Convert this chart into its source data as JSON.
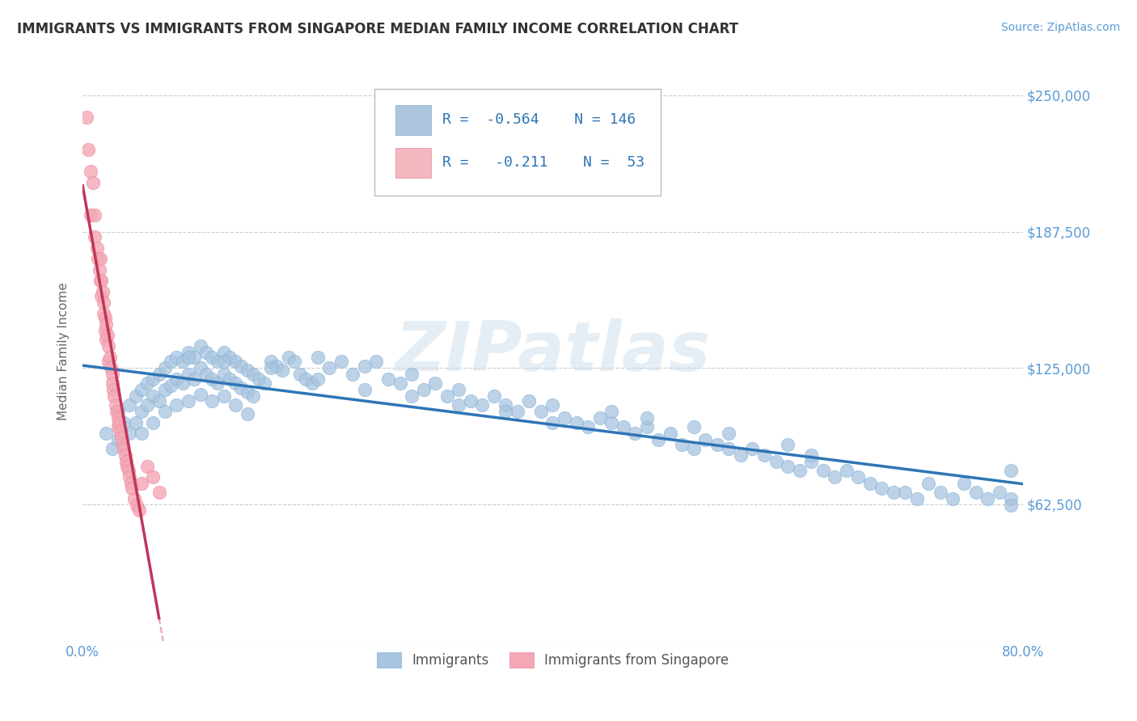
{
  "title": "IMMIGRANTS VS IMMIGRANTS FROM SINGAPORE MEDIAN FAMILY INCOME CORRELATION CHART",
  "source": "Source: ZipAtlas.com",
  "ylabel": "Median Family Income",
  "xlim": [
    0.0,
    0.8
  ],
  "ylim": [
    0,
    265000
  ],
  "yticks": [
    0,
    62500,
    125000,
    187500,
    250000
  ],
  "ytick_labels": [
    "",
    "$62,500",
    "$125,000",
    "$187,500",
    "$250,000"
  ],
  "xticks": [
    0.0,
    0.1,
    0.2,
    0.3,
    0.4,
    0.5,
    0.6,
    0.7,
    0.8
  ],
  "xtick_labels": [
    "0.0%",
    "",
    "",
    "",
    "",
    "",
    "",
    "",
    "80.0%"
  ],
  "blue_R": -0.564,
  "blue_N": 146,
  "pink_R": -0.211,
  "pink_N": 53,
  "blue_color": "#a8c4e0",
  "blue_line_color": "#2e75b6",
  "pink_color": "#f4a7b4",
  "pink_line_color": "#c0365a",
  "pink_dash_color": "#e8a0b0",
  "blue_legend_color": "#aec6e0",
  "pink_legend_color": "#f4b8c1",
  "watermark": "ZIPatlas",
  "background_color": "#ffffff",
  "blue_scatter_x": [
    0.02,
    0.025,
    0.03,
    0.03,
    0.035,
    0.04,
    0.04,
    0.045,
    0.045,
    0.05,
    0.05,
    0.05,
    0.055,
    0.055,
    0.06,
    0.06,
    0.06,
    0.065,
    0.065,
    0.07,
    0.07,
    0.07,
    0.075,
    0.075,
    0.08,
    0.08,
    0.08,
    0.085,
    0.085,
    0.09,
    0.09,
    0.09,
    0.095,
    0.095,
    0.1,
    0.1,
    0.1,
    0.105,
    0.105,
    0.11,
    0.11,
    0.11,
    0.115,
    0.115,
    0.12,
    0.12,
    0.12,
    0.125,
    0.125,
    0.13,
    0.13,
    0.13,
    0.135,
    0.135,
    0.14,
    0.14,
    0.14,
    0.145,
    0.145,
    0.15,
    0.155,
    0.16,
    0.165,
    0.17,
    0.175,
    0.18,
    0.185,
    0.19,
    0.195,
    0.2,
    0.21,
    0.22,
    0.23,
    0.24,
    0.25,
    0.26,
    0.27,
    0.28,
    0.29,
    0.3,
    0.31,
    0.32,
    0.33,
    0.34,
    0.35,
    0.36,
    0.37,
    0.38,
    0.39,
    0.4,
    0.41,
    0.42,
    0.43,
    0.44,
    0.45,
    0.46,
    0.47,
    0.48,
    0.49,
    0.5,
    0.51,
    0.52,
    0.53,
    0.54,
    0.55,
    0.56,
    0.57,
    0.58,
    0.59,
    0.6,
    0.61,
    0.62,
    0.63,
    0.64,
    0.65,
    0.66,
    0.67,
    0.68,
    0.69,
    0.7,
    0.71,
    0.72,
    0.73,
    0.74,
    0.75,
    0.76,
    0.77,
    0.78,
    0.79,
    0.79,
    0.79,
    0.6,
    0.62,
    0.55,
    0.52,
    0.48,
    0.45,
    0.4,
    0.36,
    0.32,
    0.28,
    0.24,
    0.2,
    0.16,
    0.12,
    0.09
  ],
  "blue_scatter_y": [
    95000,
    88000,
    105000,
    92000,
    100000,
    108000,
    95000,
    112000,
    100000,
    115000,
    105000,
    95000,
    118000,
    108000,
    120000,
    112000,
    100000,
    122000,
    110000,
    125000,
    115000,
    105000,
    128000,
    117000,
    130000,
    120000,
    108000,
    128000,
    118000,
    132000,
    122000,
    110000,
    130000,
    120000,
    135000,
    125000,
    113000,
    132000,
    122000,
    130000,
    120000,
    110000,
    128000,
    118000,
    132000,
    122000,
    112000,
    130000,
    120000,
    128000,
    118000,
    108000,
    126000,
    116000,
    124000,
    114000,
    104000,
    122000,
    112000,
    120000,
    118000,
    128000,
    126000,
    124000,
    130000,
    128000,
    122000,
    120000,
    118000,
    130000,
    125000,
    128000,
    122000,
    126000,
    128000,
    120000,
    118000,
    122000,
    115000,
    118000,
    112000,
    115000,
    110000,
    108000,
    112000,
    108000,
    105000,
    110000,
    105000,
    108000,
    102000,
    100000,
    98000,
    102000,
    100000,
    98000,
    95000,
    98000,
    92000,
    95000,
    90000,
    88000,
    92000,
    90000,
    88000,
    85000,
    88000,
    85000,
    82000,
    80000,
    78000,
    82000,
    78000,
    75000,
    78000,
    75000,
    72000,
    70000,
    68000,
    68000,
    65000,
    72000,
    68000,
    65000,
    72000,
    68000,
    65000,
    68000,
    65000,
    62000,
    78000,
    90000,
    85000,
    95000,
    98000,
    102000,
    105000,
    100000,
    105000,
    108000,
    112000,
    115000,
    120000,
    125000,
    128000,
    130000
  ],
  "pink_scatter_x": [
    0.003,
    0.005,
    0.007,
    0.007,
    0.009,
    0.01,
    0.01,
    0.012,
    0.013,
    0.014,
    0.015,
    0.015,
    0.016,
    0.016,
    0.017,
    0.018,
    0.018,
    0.019,
    0.019,
    0.02,
    0.02,
    0.021,
    0.022,
    0.022,
    0.023,
    0.024,
    0.025,
    0.025,
    0.026,
    0.027,
    0.028,
    0.029,
    0.03,
    0.03,
    0.031,
    0.032,
    0.033,
    0.034,
    0.035,
    0.036,
    0.037,
    0.038,
    0.039,
    0.04,
    0.041,
    0.042,
    0.044,
    0.046,
    0.048,
    0.05,
    0.055,
    0.06,
    0.065
  ],
  "pink_scatter_y": [
    240000,
    225000,
    215000,
    195000,
    210000,
    195000,
    185000,
    180000,
    175000,
    170000,
    165000,
    175000,
    165000,
    158000,
    160000,
    155000,
    150000,
    148000,
    142000,
    145000,
    138000,
    140000,
    135000,
    128000,
    130000,
    125000,
    122000,
    118000,
    115000,
    112000,
    108000,
    105000,
    102000,
    98000,
    100000,
    96000,
    93000,
    90000,
    88000,
    85000,
    82000,
    80000,
    78000,
    75000,
    72000,
    70000,
    65000,
    62000,
    60000,
    72000,
    80000,
    75000,
    68000
  ]
}
